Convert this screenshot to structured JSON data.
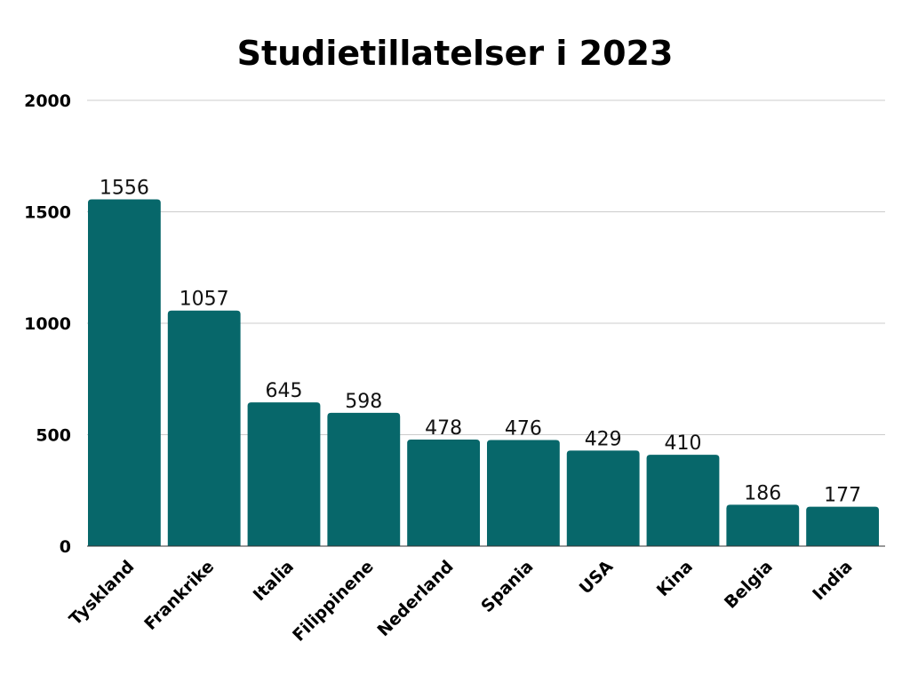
{
  "chart_data": {
    "type": "bar",
    "title": "Studietillatelser i 2023",
    "xlabel": "",
    "ylabel": "",
    "categories": [
      "Tyskland",
      "Frankrike",
      "Italia",
      "Filippinene",
      "Nederland",
      "Spania",
      "USA",
      "Kina",
      "Belgia",
      "India"
    ],
    "values": [
      1556,
      1057,
      645,
      598,
      478,
      476,
      429,
      410,
      186,
      177
    ],
    "data_labels": [
      "1556",
      "1057",
      "645",
      "598",
      "478",
      "476",
      "429",
      "410",
      "186",
      "177"
    ],
    "yticks": [
      0,
      500,
      1000,
      1500,
      2000
    ],
    "ylim": [
      0,
      2000
    ],
    "grid": true,
    "legend": "none"
  },
  "colors": {
    "bar": "#07676a",
    "grid": "#cccccc",
    "axis": "#333333"
  }
}
